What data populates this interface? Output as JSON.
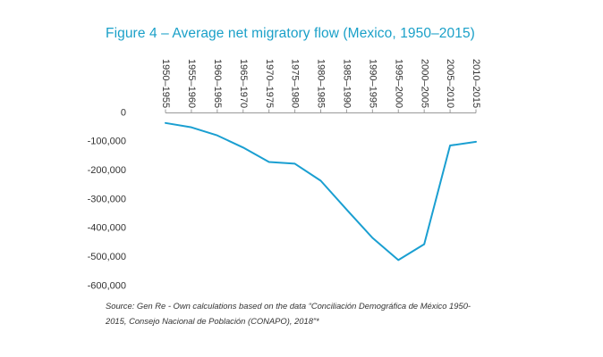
{
  "chart_data": {
    "type": "line",
    "title": "Figure 4 – Average net migratory flow (Mexico, 1950–2015)",
    "xlabel": "",
    "ylabel": "",
    "categories": [
      "1950–1955",
      "1955–1960",
      "1960–1965",
      "1965–1970",
      "1970–1975",
      "1975–1980",
      "1980–1985",
      "1985–1990",
      "1990–1995",
      "1995–2000",
      "2000–2005",
      "2005–2010",
      "2010–2015"
    ],
    "series": [
      {
        "name": "Average net migratory flow",
        "color": "#1a9fd1",
        "values": [
          -35000,
          -50000,
          -78000,
          -120000,
          -170000,
          -176000,
          -235000,
          -335000,
          -433000,
          -510000,
          -455000,
          -113000,
          -100000
        ]
      }
    ],
    "ylim": [
      -600000,
      0
    ],
    "yticks": [
      0,
      -100000,
      -200000,
      -300000,
      -400000,
      -500000,
      -600000
    ],
    "ytick_labels": [
      "0",
      "-100,000",
      "-200,000",
      "-300,000",
      "-400,000",
      "-500,000",
      "-600,000"
    ],
    "grid": false,
    "legend": "none",
    "axis_color": "#999999",
    "line_color": "#1a9fd1"
  },
  "source_note": "Source: Gen Re - Own calculations based on the data “Conciliación Demográfica de México 1950-2015, Consejo Nacional de Población (CONAPO), 2018”*"
}
